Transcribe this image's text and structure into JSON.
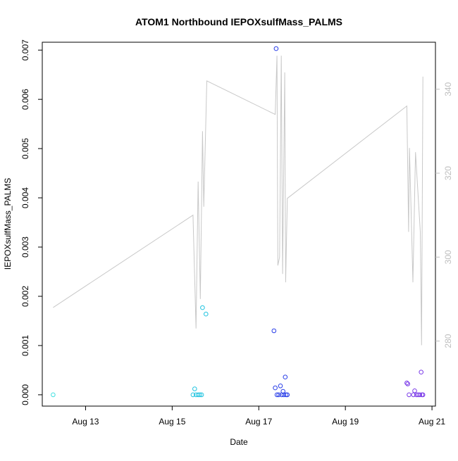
{
  "chart_data": {
    "type": "scatter",
    "title": "ATOM1 Northbound IEPOXsulfMass_PALMS",
    "xlabel": "Date",
    "ylabel": "IEPOXsulfMass_PALMS",
    "x_ticks": [
      "Aug 13",
      "Aug 15",
      "Aug 17",
      "Aug 19",
      "Aug 21"
    ],
    "x_tick_days": [
      13,
      15,
      17,
      19,
      21
    ],
    "x_range_days": [
      12.0,
      21.08
    ],
    "y_ticks": [
      "0.000",
      "0.001",
      "0.002",
      "0.003",
      "0.004",
      "0.005",
      "0.006",
      "0.007"
    ],
    "y_tick_values": [
      0,
      0.001,
      0.002,
      0.003,
      0.004,
      0.005,
      0.006,
      0.007
    ],
    "ylim": [
      -0.00023,
      0.00716
    ],
    "y2_ticks": [
      "280",
      "300",
      "320",
      "340"
    ],
    "y2_tick_values": [
      280,
      300,
      320,
      340
    ],
    "y2lim": [
      264.5,
      351.2
    ],
    "grid": false,
    "legend": "none",
    "colors": {
      "line": "#c8c8c8",
      "axis": "#000000",
      "y2_axis": "#bebebe",
      "points_early": "#3fe0e0",
      "points_aug15": "#22c4e0",
      "points_aug17": "#2a3fe8",
      "points_aug20": "#7a3ae8"
    },
    "series": [
      {
        "kind": "points",
        "values": [
          [
            12.25,
            0.0,
            "#3fe0e0"
          ],
          [
            15.48,
            0.0,
            "#22c4e0"
          ],
          [
            15.52,
            0.00012,
            "#22c4e0"
          ],
          [
            15.55,
            0.0,
            "#22c4e0"
          ],
          [
            15.6,
            0.0,
            "#22c4e0"
          ],
          [
            15.64,
            0.0,
            "#22c4e0"
          ],
          [
            15.68,
            0.0,
            "#22c4e0"
          ],
          [
            15.7,
            0.00177,
            "#22c4e0"
          ],
          [
            15.78,
            0.00164,
            "#22c4e0"
          ],
          [
            17.35,
            0.0013,
            "#2a3fe8"
          ],
          [
            17.4,
            0.00703,
            "#2a3fe8"
          ],
          [
            17.38,
            0.00014,
            "#2a3fe8"
          ],
          [
            17.42,
            0.0,
            "#2a3fe8"
          ],
          [
            17.46,
            0.0,
            "#2a3fe8"
          ],
          [
            17.5,
            0.00018,
            "#2a3fe8"
          ],
          [
            17.53,
            0.0,
            "#2a3fe8"
          ],
          [
            17.56,
            7e-05,
            "#2a3fe8"
          ],
          [
            17.58,
            0.0,
            "#2a3fe8"
          ],
          [
            17.61,
            0.00036,
            "#2a3fe8"
          ],
          [
            17.63,
            0.0,
            "#2a3fe8"
          ],
          [
            17.66,
            0.0,
            "#2a3fe8"
          ],
          [
            20.42,
            0.00024,
            "#7a3ae8"
          ],
          [
            20.44,
            0.00022,
            "#7a3ae8"
          ],
          [
            20.47,
            0.0,
            "#7a3ae8"
          ],
          [
            20.57,
            0.0,
            "#7a3ae8"
          ],
          [
            20.6,
            8e-05,
            "#7a3ae8"
          ],
          [
            20.64,
            0.0,
            "#7a3ae8"
          ],
          [
            20.68,
            0.0,
            "#7a3ae8"
          ],
          [
            20.72,
            0.0,
            "#7a3ae8"
          ],
          [
            20.75,
            0.00046,
            "#7a3ae8"
          ],
          [
            20.77,
            0.0,
            "#7a3ae8"
          ],
          [
            20.79,
            0.0,
            "#7a3ae8"
          ]
        ]
      },
      {
        "kind": "line",
        "axis": "y2",
        "values": [
          [
            12.25,
            288
          ],
          [
            15.48,
            310
          ],
          [
            15.55,
            283
          ],
          [
            15.6,
            318
          ],
          [
            15.65,
            290
          ],
          [
            15.7,
            330
          ],
          [
            15.73,
            312
          ],
          [
            15.8,
            342
          ],
          [
            17.38,
            334
          ],
          [
            17.42,
            348
          ],
          [
            17.44,
            298
          ],
          [
            17.48,
            300
          ],
          [
            17.52,
            348
          ],
          [
            17.55,
            296
          ],
          [
            17.6,
            344
          ],
          [
            17.62,
            294
          ],
          [
            17.66,
            314
          ],
          [
            20.42,
            336
          ],
          [
            20.46,
            306
          ],
          [
            20.48,
            326
          ],
          [
            20.52,
            310
          ],
          [
            20.56,
            294
          ],
          [
            20.62,
            325
          ],
          [
            20.73,
            306
          ],
          [
            20.76,
            279
          ],
          [
            20.79,
            343
          ]
        ]
      }
    ]
  }
}
